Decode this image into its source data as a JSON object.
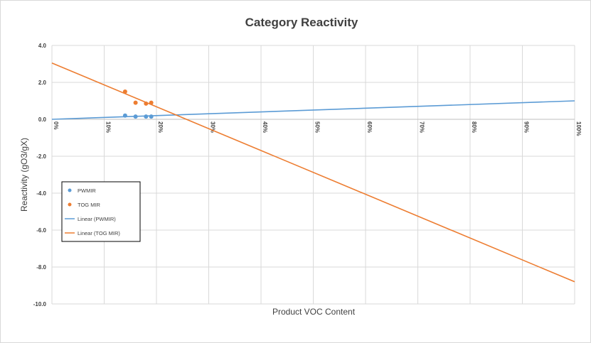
{
  "chart_data": {
    "type": "scatter",
    "title": "Category Reactivity",
    "xlabel": "Product VOC Content",
    "ylabel": "Reactivity (gO3/gX)",
    "xlim": [
      0,
      1
    ],
    "ylim": [
      -10,
      4
    ],
    "x_ticks": [
      0,
      0.1,
      0.2,
      0.3,
      0.4,
      0.5,
      0.6,
      0.7,
      0.8,
      0.9,
      1.0
    ],
    "x_tick_labels": [
      "0%",
      "10%",
      "20%",
      "30%",
      "40%",
      "50%",
      "60%",
      "70%",
      "80%",
      "90%",
      "100%"
    ],
    "y_ticks": [
      4,
      2,
      0,
      -2,
      -4,
      -6,
      -8,
      -10
    ],
    "y_tick_labels": [
      "4.0",
      "2.0",
      "0.0",
      "-2.0",
      "-4.0",
      "-6.0",
      "-8.0",
      "-10.0"
    ],
    "grid": true,
    "legend_position": "left-middle",
    "series": [
      {
        "name": "PWMIR",
        "kind": "points",
        "color": "#5b9bd5",
        "points": [
          [
            0.14,
            0.2
          ],
          [
            0.16,
            0.15
          ],
          [
            0.18,
            0.15
          ],
          [
            0.19,
            0.15
          ]
        ]
      },
      {
        "name": "TOG MIR",
        "kind": "points",
        "color": "#ed7d31",
        "points": [
          [
            0.14,
            1.5
          ],
          [
            0.16,
            0.9
          ],
          [
            0.18,
            0.85
          ],
          [
            0.19,
            0.9
          ]
        ]
      },
      {
        "name": "Linear (PWMIR)",
        "kind": "trendline",
        "color": "#5b9bd5",
        "points": [
          [
            0,
            0.0
          ],
          [
            1,
            1.0
          ]
        ]
      },
      {
        "name": "Linear (TOG MIR)",
        "kind": "trendline",
        "color": "#ed7d31",
        "points": [
          [
            0,
            3.05
          ],
          [
            1,
            -8.8
          ]
        ]
      }
    ]
  }
}
